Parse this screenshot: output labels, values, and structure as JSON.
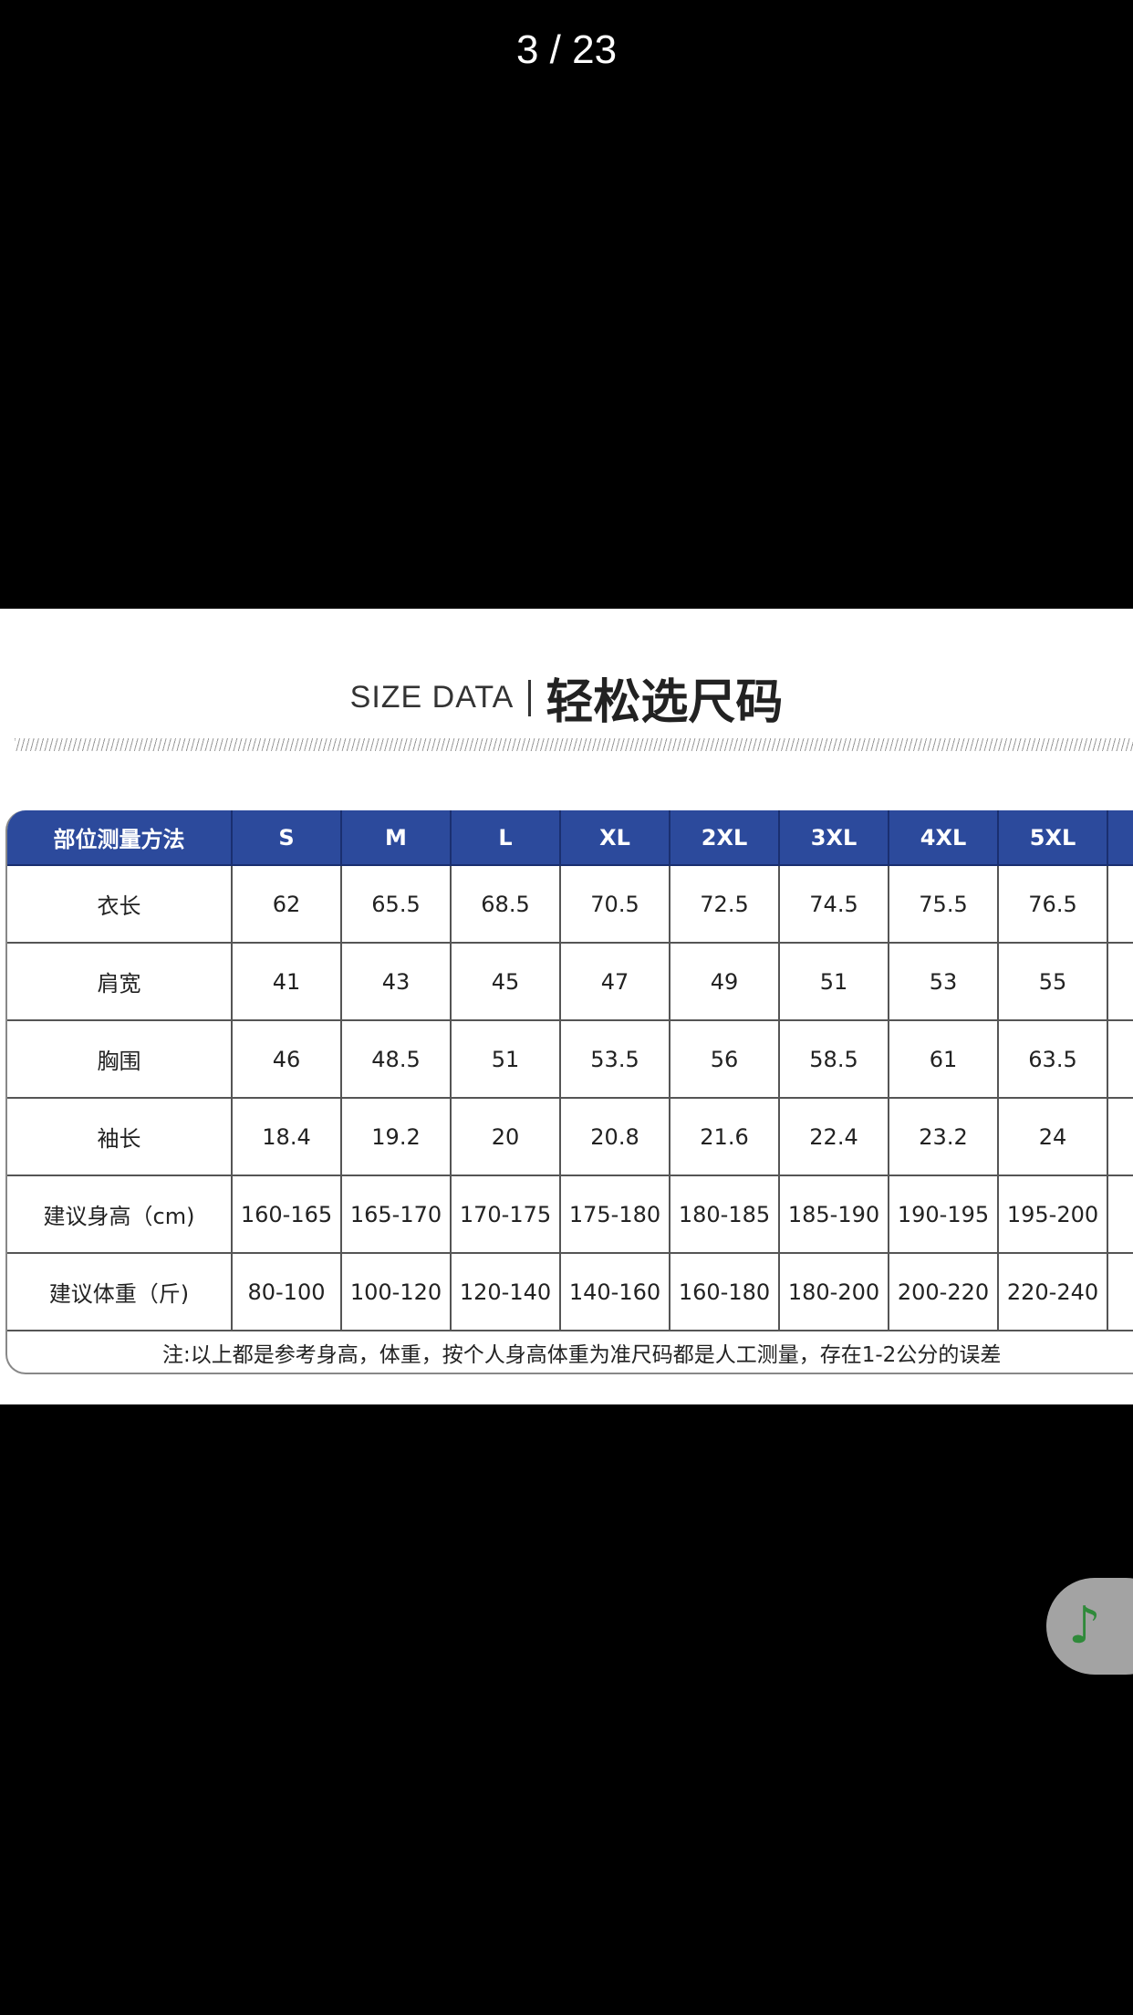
{
  "viewer": {
    "counter": "3 / 23"
  },
  "chart_title": {
    "en": "SIZE DATA",
    "zh": "轻松选尺码"
  },
  "table": {
    "headers": [
      "部位测量方法",
      "S",
      "M",
      "L",
      "XL",
      "2XL",
      "3XL",
      "4XL",
      "5XL",
      ""
    ],
    "rows": [
      [
        "衣长",
        "62",
        "65.5",
        "68.5",
        "70.5",
        "72.5",
        "74.5",
        "75.5",
        "76.5",
        ""
      ],
      [
        "肩宽",
        "41",
        "43",
        "45",
        "47",
        "49",
        "51",
        "53",
        "55",
        ""
      ],
      [
        "胸围",
        "46",
        "48.5",
        "51",
        "53.5",
        "56",
        "58.5",
        "61",
        "63.5",
        ""
      ],
      [
        "袖长",
        "18.4",
        "19.2",
        "20",
        "20.8",
        "21.6",
        "22.4",
        "23.2",
        "24",
        ""
      ],
      [
        "建议身高（cm)",
        "160-165",
        "165-170",
        "170-175",
        "175-180",
        "180-185",
        "185-190",
        "190-195",
        "195-200",
        "20"
      ],
      [
        "建议体重（斤)",
        "80-100",
        "100-120",
        "120-140",
        "140-160",
        "160-180",
        "180-200",
        "200-220",
        "220-240",
        "24"
      ]
    ],
    "note": "注:以上都是参考身高，体重，按个人身高体重为准尺码都是人工测量，存在1-2公分的误差"
  },
  "music_button": {
    "icon": "music-note-icon"
  },
  "colors": {
    "header_blue": "#2c4a9c",
    "music_green": "#2f8a3a"
  }
}
